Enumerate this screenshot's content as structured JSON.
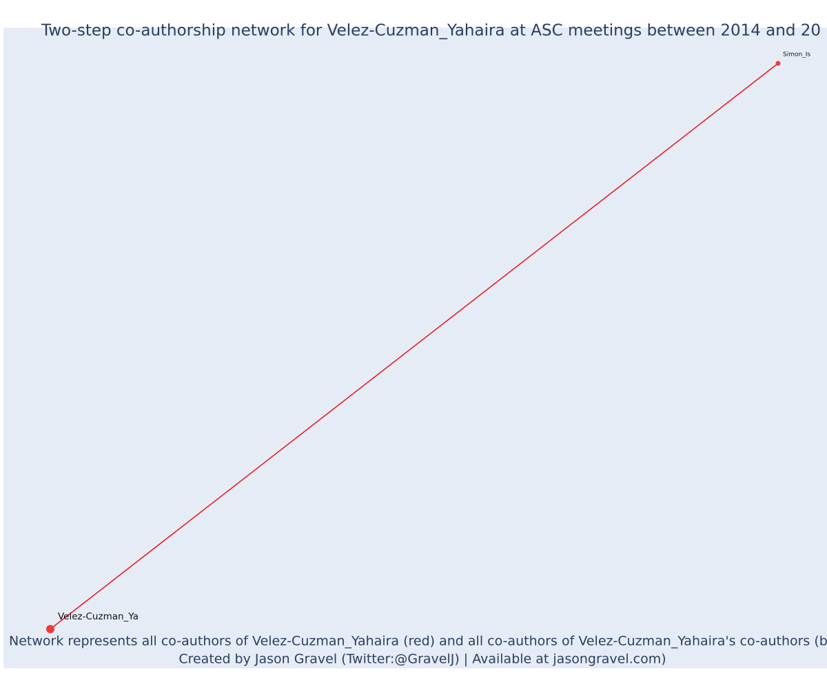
{
  "header": {
    "title": "Two-step co-authorship network for Velez-Cuzman_Yahaira at ASC meetings between 2014 and 20"
  },
  "nodes": [
    {
      "label": "Velez-Cuzman_Ya"
    },
    {
      "label": "Simon_Is"
    }
  ],
  "footer": {
    "lines": [
      "Network represents all co-authors of Velez-Cuzman_Yahaira (red) and all co-authors of Velez-Cuzman_Yahaira's co-authors (blue",
      "Created by Jason Gravel (Twitter:@GravelJ) | Available at jasongravel.com)"
    ]
  }
}
